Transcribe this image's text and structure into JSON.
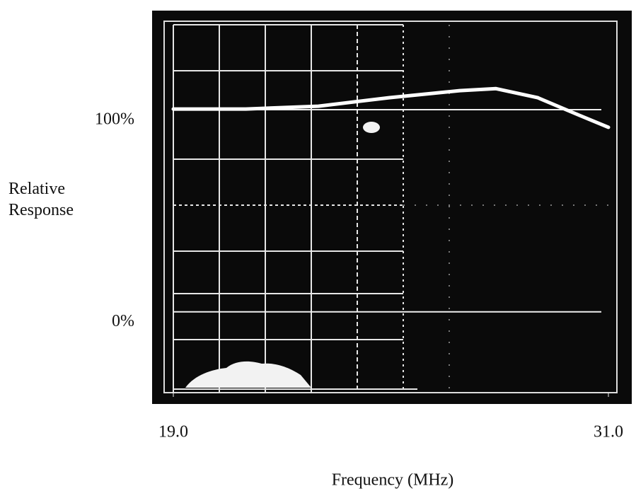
{
  "chart_data": {
    "type": "line",
    "ylabel": "Relative Response",
    "xlabel": "Frequency (MHz)",
    "x": [
      19.0,
      21.0,
      23.0,
      24.95,
      26.9,
      27.9,
      29.05,
      30.2,
      31.0
    ],
    "values": [
      100.3,
      100.3,
      101.7,
      105.9,
      109.4,
      110.4,
      105.9,
      97.2,
      91.3
    ],
    "color": "#ffffff",
    "xlim": [
      19,
      31
    ],
    "xticks": [
      {
        "value": 19,
        "label": "19.0"
      },
      {
        "value": 31,
        "label": "31.0"
      }
    ],
    "ylim": [
      -40,
      142
    ],
    "yticks": [
      {
        "value": 100,
        "label": "100%"
      },
      {
        "value": 0,
        "label": "0%"
      }
    ]
  }
}
